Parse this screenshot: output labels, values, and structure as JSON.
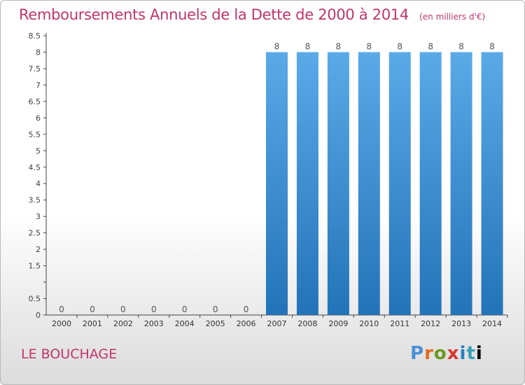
{
  "title": "Remboursements Annuels de la Dette de 2000 à 2014",
  "subtitle": "(en milliers d'€)",
  "commune": "LE BOUCHAGE",
  "logo_letters": [
    "P",
    "r",
    "o",
    "x",
    "i",
    "t",
    "i"
  ],
  "colors": {
    "title": "#c0356b",
    "bar_top": "#5aaae8",
    "bar_bottom": "#2373b8",
    "axis": "#444444"
  },
  "chart_data": {
    "type": "bar",
    "categories": [
      "2000",
      "2001",
      "2002",
      "2003",
      "2004",
      "2005",
      "2006",
      "2007",
      "2008",
      "2009",
      "2010",
      "2011",
      "2012",
      "2013",
      "2014"
    ],
    "values": [
      0,
      0,
      0,
      0,
      0,
      0,
      0,
      8,
      8,
      8,
      8,
      8,
      8,
      8,
      8
    ],
    "data_labels": [
      "0",
      "0",
      "0",
      "0",
      "0",
      "0",
      "0",
      "8",
      "8",
      "8",
      "8",
      "8",
      "8",
      "8",
      "8"
    ],
    "yticks": [
      "0",
      "0.5",
      "",
      "1.5",
      "2",
      "2.5",
      "3",
      "3.5",
      "4",
      "4.5",
      "5",
      "5.5",
      "6",
      "6.5",
      "7",
      "7.5",
      "8",
      "8.5"
    ],
    "ylim": [
      0,
      8.5
    ],
    "grid": false
  }
}
